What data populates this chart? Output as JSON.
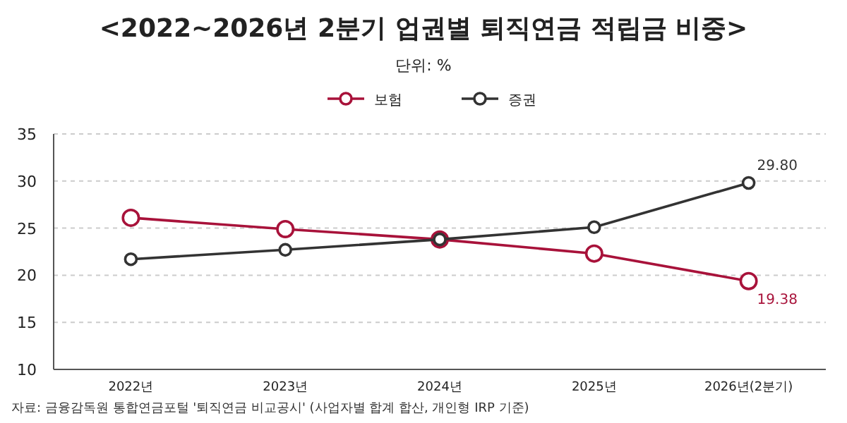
{
  "chart_data": {
    "type": "line",
    "title": "<2022~2026년 2분기 업권별 퇴직연금 적립금 비중>",
    "subtitle": "단위: %",
    "categories": [
      "2022년",
      "2023년",
      "2024년",
      "2025년",
      "2026년(2분기)"
    ],
    "series": [
      {
        "name": "보험",
        "color": "#a8123a",
        "values": [
          26.1,
          24.9,
          23.8,
          22.3,
          19.38
        ],
        "value_labels": [
          null,
          null,
          null,
          null,
          "19.38"
        ]
      },
      {
        "name": "증권",
        "color": "#333333",
        "values": [
          21.7,
          22.7,
          23.8,
          25.1,
          29.8
        ],
        "value_labels": [
          null,
          null,
          null,
          null,
          "29.80"
        ]
      }
    ],
    "ylim": [
      10,
      35
    ],
    "yticks": [
      10,
      15,
      20,
      25,
      30,
      35
    ],
    "grid": "y",
    "legend": "top",
    "marker": "circle",
    "line_style": "solid",
    "annotations": [
      "자료: 금융감독원 통합연금포털 '퇴직연금 비교공시' (사업자별 합계 합산, 개인형 IRP 기준)"
    ]
  }
}
